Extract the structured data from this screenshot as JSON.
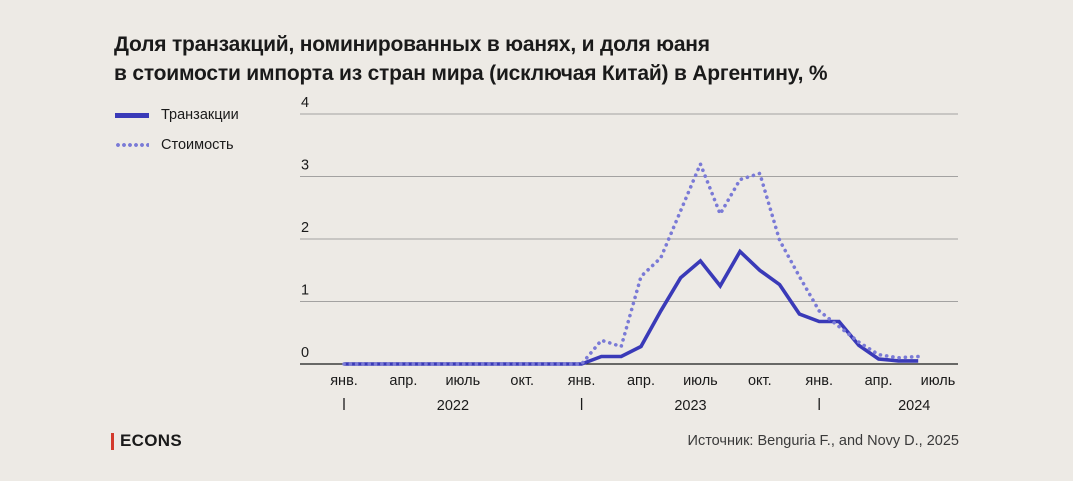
{
  "title_line1": "Доля транзакций, номинированных в юанях, и доля юаня",
  "title_line2": "в стоимости импорта из стран мира (исключая Китай) в Аргентину, %",
  "legend": {
    "transactions": "Транзакции",
    "value": "Стоимость"
  },
  "brand": "ECONS",
  "source": "Источник: Benguria F., and Novy D., 2025",
  "colors": {
    "transactions": "#3a3ab8",
    "value": "#7a7ad6",
    "gridline": "#8a8a8a",
    "background": "#edeae5"
  },
  "chart_data": {
    "type": "line",
    "ylim": [
      0,
      4
    ],
    "yticks": [
      "0",
      "1",
      "2",
      "3",
      "4"
    ],
    "x_months": [
      "янв. 2022",
      "фев. 2022",
      "мар. 2022",
      "апр. 2022",
      "май 2022",
      "июн. 2022",
      "июль 2022",
      "авг. 2022",
      "сен. 2022",
      "окт. 2022",
      "ноя. 2022",
      "дек. 2022",
      "янв. 2023",
      "фев. 2023",
      "мар. 2023",
      "апр. 2023",
      "май 2023",
      "июн. 2023",
      "июль 2023",
      "авг. 2023",
      "сен. 2023",
      "окт. 2023",
      "ноя. 2023",
      "дек. 2023",
      "янв. 2024",
      "фев. 2024",
      "мар. 2024",
      "апр. 2024",
      "май 2024",
      "июн. 2024"
    ],
    "month_tick_labels": [
      "янв.",
      "апр.",
      "июль",
      "окт.",
      "янв.",
      "апр.",
      "июль",
      "окт.",
      "янв.",
      "апр.",
      "июль"
    ],
    "year_labels": [
      "2022",
      "2023",
      "2024"
    ],
    "series": [
      {
        "name": "Транзакции",
        "style": "solid",
        "values": [
          0,
          0,
          0,
          0,
          0,
          0,
          0,
          0,
          0,
          0,
          0,
          0,
          0,
          0.12,
          0.12,
          0.28,
          0.85,
          1.38,
          1.65,
          1.25,
          1.8,
          1.5,
          1.27,
          0.8,
          0.68,
          0.68,
          0.3,
          0.08,
          0.05,
          0.05
        ]
      },
      {
        "name": "Стоимость",
        "style": "dotted",
        "values": [
          0,
          0,
          0,
          0,
          0,
          0,
          0,
          0,
          0,
          0,
          0,
          0,
          0,
          0.38,
          0.28,
          1.4,
          1.7,
          2.45,
          3.2,
          2.4,
          2.95,
          3.05,
          1.98,
          1.4,
          0.85,
          0.6,
          0.35,
          0.15,
          0.1,
          0.12
        ]
      }
    ]
  }
}
